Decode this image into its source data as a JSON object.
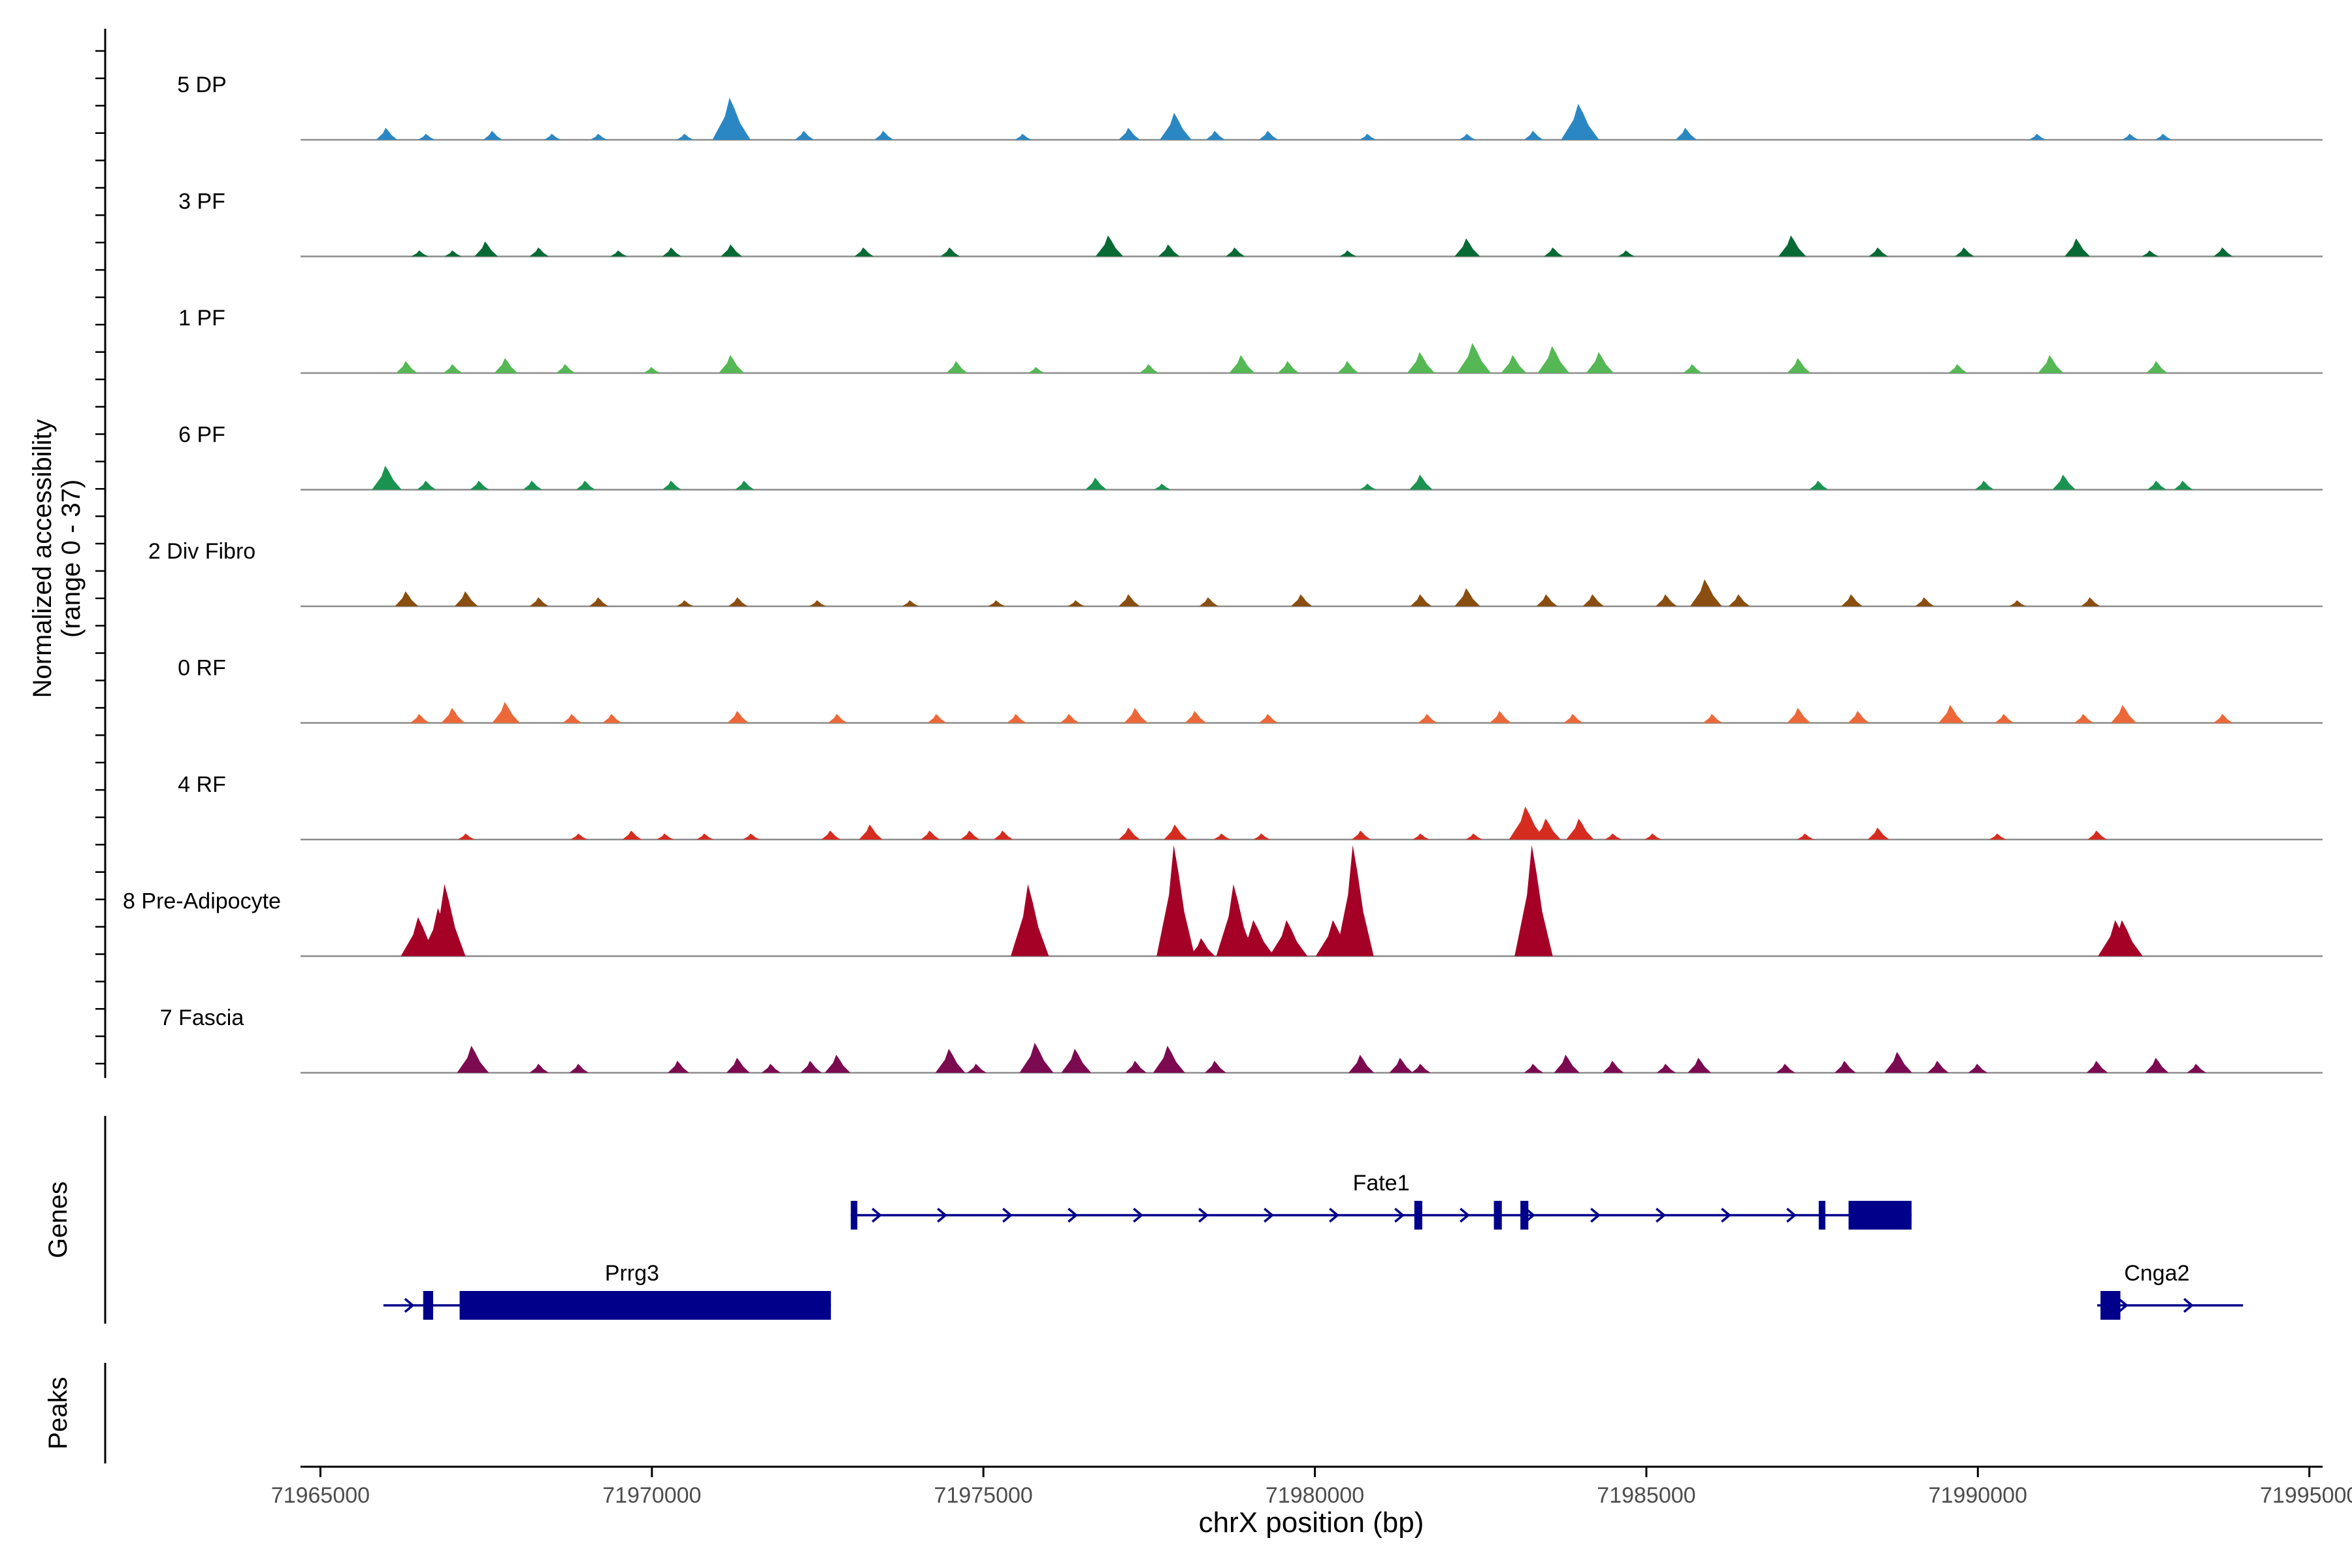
{
  "chart_data": {
    "type": "area",
    "title": "",
    "ylabel": "Normalized accessibility\n(range 0 - 37)",
    "xlabel": "chrX position (bp)",
    "xlim": [
      71964700,
      71995200
    ],
    "ylim": [
      0,
      37
    ],
    "x_ticks": [
      71965000,
      71970000,
      71975000,
      71980000,
      71985000,
      71990000,
      71995000
    ],
    "x_tick_labels": [
      "71965000",
      "71970000",
      "71975000",
      "71980000",
      "71985000",
      "71990000",
      "71995000"
    ],
    "y_ticks": [
      0,
      1,
      2,
      3,
      4,
      5,
      6,
      7,
      8,
      9,
      10,
      11,
      12,
      13,
      14,
      15,
      16,
      17,
      18,
      19,
      20,
      21,
      22,
      23,
      24,
      25,
      26,
      27,
      28,
      29,
      30,
      31,
      32,
      33,
      34,
      35,
      36,
      37
    ],
    "series": [
      {
        "name": "5 DP",
        "color": "#2b87c3",
        "peaks": [
          [
            71966000,
            4
          ],
          [
            71966600,
            2
          ],
          [
            71967600,
            3
          ],
          [
            71968500,
            2
          ],
          [
            71969200,
            2
          ],
          [
            71970500,
            2
          ],
          [
            71971200,
            14
          ],
          [
            71972300,
            3
          ],
          [
            71973500,
            3
          ],
          [
            71975600,
            2
          ],
          [
            71977200,
            4
          ],
          [
            71977900,
            9
          ],
          [
            71978500,
            3
          ],
          [
            71979300,
            3
          ],
          [
            71980800,
            2
          ],
          [
            71982300,
            2
          ],
          [
            71983300,
            3
          ],
          [
            71984000,
            12
          ],
          [
            71985600,
            4
          ],
          [
            71990900,
            2
          ],
          [
            71992300,
            2
          ],
          [
            71992800,
            2
          ]
        ]
      },
      {
        "name": "3 PF",
        "color": "#076a34",
        "peaks": [
          [
            71966500,
            2
          ],
          [
            71967000,
            2
          ],
          [
            71967500,
            5
          ],
          [
            71968300,
            3
          ],
          [
            71969500,
            2
          ],
          [
            71970300,
            3
          ],
          [
            71971200,
            4
          ],
          [
            71973200,
            3
          ],
          [
            71974500,
            3
          ],
          [
            71976900,
            7
          ],
          [
            71977800,
            4
          ],
          [
            71978800,
            3
          ],
          [
            71980500,
            2
          ],
          [
            71982300,
            6
          ],
          [
            71983600,
            3
          ],
          [
            71984700,
            2
          ],
          [
            71987200,
            7
          ],
          [
            71988500,
            3
          ],
          [
            71989800,
            3
          ],
          [
            71991500,
            6
          ],
          [
            71992600,
            2
          ],
          [
            71993700,
            3
          ]
        ]
      },
      {
        "name": "1 PF",
        "color": "#55b855",
        "peaks": [
          [
            71966300,
            4
          ],
          [
            71967000,
            3
          ],
          [
            71967800,
            5
          ],
          [
            71968700,
            3
          ],
          [
            71970000,
            2
          ],
          [
            71971200,
            6
          ],
          [
            71974600,
            4
          ],
          [
            71975800,
            2
          ],
          [
            71977500,
            3
          ],
          [
            71978900,
            6
          ],
          [
            71979600,
            4
          ],
          [
            71980500,
            4
          ],
          [
            71981600,
            7
          ],
          [
            71982400,
            10
          ],
          [
            71983000,
            6
          ],
          [
            71983600,
            9
          ],
          [
            71984300,
            7
          ],
          [
            71985700,
            3
          ],
          [
            71987300,
            5
          ],
          [
            71989700,
            3
          ],
          [
            71991100,
            6
          ],
          [
            71992700,
            4
          ]
        ]
      },
      {
        "name": "6 PF",
        "color": "#1a9351",
        "peaks": [
          [
            71966000,
            8
          ],
          [
            71966600,
            3
          ],
          [
            71967400,
            3
          ],
          [
            71968200,
            3
          ],
          [
            71969000,
            3
          ],
          [
            71970300,
            3
          ],
          [
            71971400,
            3
          ],
          [
            71976700,
            4
          ],
          [
            71977700,
            2
          ],
          [
            71980800,
            2
          ],
          [
            71981600,
            5
          ],
          [
            71987600,
            3
          ],
          [
            71990100,
            3
          ],
          [
            71991300,
            5
          ],
          [
            71992700,
            3
          ],
          [
            71993100,
            3
          ]
        ]
      },
      {
        "name": "2 Div Fibro",
        "color": "#8a4f10",
        "peaks": [
          [
            71966300,
            5
          ],
          [
            71967200,
            5
          ],
          [
            71968300,
            3
          ],
          [
            71969200,
            3
          ],
          [
            71970500,
            2
          ],
          [
            71971300,
            3
          ],
          [
            71972500,
            2
          ],
          [
            71973900,
            2
          ],
          [
            71975200,
            2
          ],
          [
            71976400,
            2
          ],
          [
            71977200,
            4
          ],
          [
            71978400,
            3
          ],
          [
            71979800,
            4
          ],
          [
            71981600,
            4
          ],
          [
            71982300,
            6
          ],
          [
            71983500,
            4
          ],
          [
            71984200,
            4
          ],
          [
            71985300,
            4
          ],
          [
            71985900,
            9
          ],
          [
            71986400,
            4
          ],
          [
            71988100,
            4
          ],
          [
            71989200,
            3
          ],
          [
            71990600,
            2
          ],
          [
            71991700,
            3
          ]
        ]
      },
      {
        "name": "0 RF",
        "color": "#ed6838",
        "peaks": [
          [
            71966500,
            3
          ],
          [
            71967000,
            5
          ],
          [
            71967800,
            7
          ],
          [
            71968800,
            3
          ],
          [
            71969400,
            3
          ],
          [
            71971300,
            4
          ],
          [
            71972800,
            3
          ],
          [
            71974300,
            3
          ],
          [
            71975500,
            3
          ],
          [
            71976300,
            3
          ],
          [
            71977300,
            5
          ],
          [
            71978200,
            4
          ],
          [
            71979300,
            3
          ],
          [
            71981700,
            3
          ],
          [
            71982800,
            4
          ],
          [
            71983900,
            3
          ],
          [
            71986000,
            3
          ],
          [
            71987300,
            5
          ],
          [
            71988200,
            4
          ],
          [
            71989600,
            6
          ],
          [
            71990400,
            3
          ],
          [
            71991600,
            3
          ],
          [
            71992200,
            6
          ],
          [
            71993700,
            3
          ]
        ]
      },
      {
        "name": "4 RF",
        "color": "#d62c20",
        "peaks": [
          [
            71967200,
            2
          ],
          [
            71968900,
            2
          ],
          [
            71969700,
            3
          ],
          [
            71970200,
            2
          ],
          [
            71970800,
            2
          ],
          [
            71971500,
            2
          ],
          [
            71972700,
            3
          ],
          [
            71973300,
            5
          ],
          [
            71974200,
            3
          ],
          [
            71974800,
            3
          ],
          [
            71975300,
            3
          ],
          [
            71977200,
            4
          ],
          [
            71977900,
            5
          ],
          [
            71978600,
            2
          ],
          [
            71979200,
            2
          ],
          [
            71980700,
            3
          ],
          [
            71981600,
            2
          ],
          [
            71982400,
            2
          ],
          [
            71983200,
            11
          ],
          [
            71983500,
            7
          ],
          [
            71984000,
            7
          ],
          [
            71984500,
            2
          ],
          [
            71985100,
            2
          ],
          [
            71987400,
            2
          ],
          [
            71988500,
            4
          ],
          [
            71990300,
            2
          ],
          [
            71991800,
            3
          ]
        ]
      },
      {
        "name": "8 Pre-Adipocyte",
        "color": "#a50026",
        "peaks": [
          [
            71966500,
            13
          ],
          [
            71966800,
            16
          ],
          [
            71966900,
            24
          ],
          [
            71975700,
            24
          ],
          [
            71977900,
            37
          ],
          [
            71978300,
            6
          ],
          [
            71978800,
            24
          ],
          [
            71979100,
            12
          ],
          [
            71979600,
            12
          ],
          [
            71980300,
            12
          ],
          [
            71980600,
            37
          ],
          [
            71983300,
            37
          ],
          [
            71992100,
            12
          ],
          [
            71992200,
            12
          ]
        ]
      },
      {
        "name": "7 Fascia",
        "color": "#7b0a51",
        "peaks": [
          [
            71967300,
            9
          ],
          [
            71968300,
            3
          ],
          [
            71968900,
            3
          ],
          [
            71970400,
            4
          ],
          [
            71971300,
            5
          ],
          [
            71971800,
            3
          ],
          [
            71972400,
            4
          ],
          [
            71972800,
            6
          ],
          [
            71974500,
            8
          ],
          [
            71974900,
            3
          ],
          [
            71975800,
            10
          ],
          [
            71976400,
            8
          ],
          [
            71977300,
            4
          ],
          [
            71977800,
            9
          ],
          [
            71978500,
            4
          ],
          [
            71980700,
            6
          ],
          [
            71981300,
            5
          ],
          [
            71981600,
            3
          ],
          [
            71983300,
            3
          ],
          [
            71983800,
            6
          ],
          [
            71984500,
            4
          ],
          [
            71985300,
            3
          ],
          [
            71985800,
            5
          ],
          [
            71987100,
            3
          ],
          [
            71988000,
            4
          ],
          [
            71988800,
            7
          ],
          [
            71989400,
            4
          ],
          [
            71990000,
            3
          ],
          [
            71991800,
            4
          ],
          [
            71992700,
            5
          ],
          [
            71993300,
            3
          ]
        ]
      }
    ],
    "genes": [
      {
        "name": "Fate1",
        "row": 1,
        "start": 71973000,
        "end": 71989000,
        "strand": "+",
        "exons": [
          [
            71973000,
            71973080
          ],
          [
            71981500,
            71981620
          ],
          [
            71982700,
            71982820
          ],
          [
            71983100,
            71983220
          ],
          [
            71987600,
            71987700
          ],
          [
            71988050,
            71989000
          ]
        ]
      },
      {
        "name": "Prrg3",
        "row": 2,
        "start": 71965950,
        "end": 71972700,
        "strand": "+",
        "exons": [
          [
            71966550,
            71966700
          ],
          [
            71967100,
            71972700
          ]
        ]
      },
      {
        "name": "Cnga2",
        "row": 2,
        "start": 71991800,
        "end": 71994000,
        "strand": "+",
        "exons": [
          [
            71991850,
            71992150
          ]
        ]
      }
    ],
    "panel_labels": {
      "genes": "Genes",
      "peaks": "Peaks"
    }
  }
}
